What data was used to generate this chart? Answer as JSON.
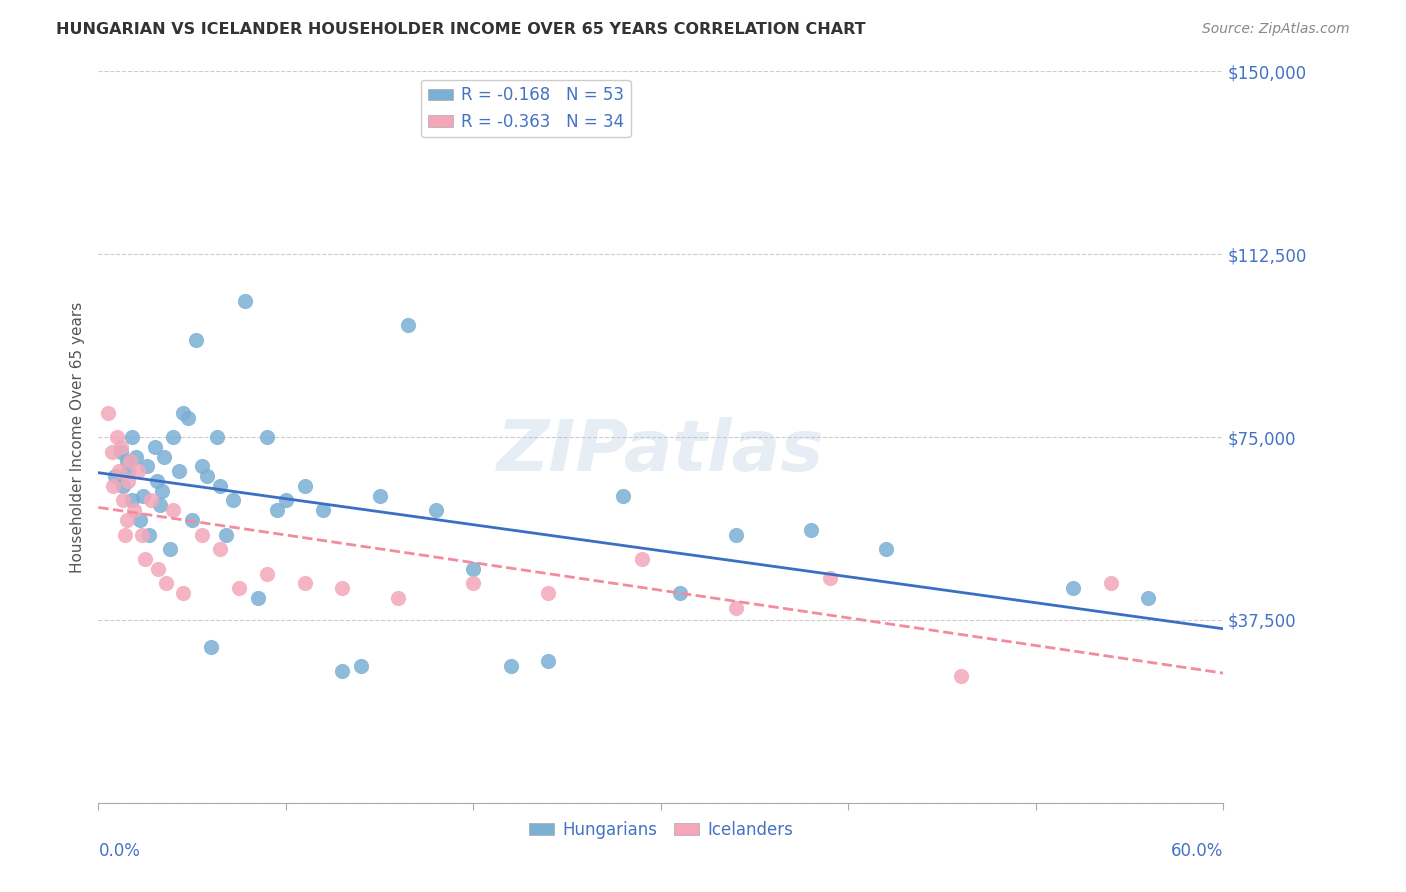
{
  "title": "HUNGARIAN VS ICELANDER HOUSEHOLDER INCOME OVER 65 YEARS CORRELATION CHART",
  "source": "Source: ZipAtlas.com",
  "ylabel": "Householder Income Over 65 years",
  "yticks": [
    0,
    37500,
    75000,
    112500,
    150000
  ],
  "ytick_labels": [
    "",
    "$37,500",
    "$75,000",
    "$112,500",
    "$150,000"
  ],
  "xlim": [
    0.0,
    0.6
  ],
  "ylim": [
    0,
    150000
  ],
  "hungarian_color": "#7bafd4",
  "icelander_color": "#f4a7b9",
  "trend_hungarian_color": "#3a6fc4",
  "trend_icelander_color": "#f48a9e",
  "hungarian_x": [
    0.009,
    0.012,
    0.013,
    0.015,
    0.016,
    0.018,
    0.018,
    0.02,
    0.022,
    0.024,
    0.026,
    0.027,
    0.03,
    0.031,
    0.033,
    0.034,
    0.035,
    0.038,
    0.04,
    0.043,
    0.045,
    0.048,
    0.05,
    0.052,
    0.055,
    0.058,
    0.06,
    0.063,
    0.065,
    0.068,
    0.072,
    0.078,
    0.085,
    0.09,
    0.095,
    0.1,
    0.11,
    0.12,
    0.13,
    0.14,
    0.15,
    0.165,
    0.18,
    0.2,
    0.22,
    0.24,
    0.28,
    0.31,
    0.34,
    0.38,
    0.42,
    0.52,
    0.56
  ],
  "hungarian_y": [
    67000,
    72000,
    65000,
    70000,
    68000,
    62000,
    75000,
    71000,
    58000,
    63000,
    69000,
    55000,
    73000,
    66000,
    61000,
    64000,
    71000,
    52000,
    75000,
    68000,
    80000,
    79000,
    58000,
    95000,
    69000,
    67000,
    32000,
    75000,
    65000,
    55000,
    62000,
    103000,
    42000,
    75000,
    60000,
    62000,
    65000,
    60000,
    27000,
    28000,
    63000,
    98000,
    60000,
    48000,
    28000,
    29000,
    63000,
    43000,
    55000,
    56000,
    52000,
    44000,
    42000
  ],
  "icelander_x": [
    0.005,
    0.007,
    0.008,
    0.01,
    0.011,
    0.012,
    0.013,
    0.014,
    0.015,
    0.016,
    0.017,
    0.019,
    0.021,
    0.023,
    0.025,
    0.028,
    0.032,
    0.036,
    0.04,
    0.045,
    0.055,
    0.065,
    0.075,
    0.09,
    0.11,
    0.13,
    0.16,
    0.2,
    0.24,
    0.29,
    0.34,
    0.39,
    0.46,
    0.54
  ],
  "icelander_y": [
    80000,
    72000,
    65000,
    75000,
    68000,
    73000,
    62000,
    55000,
    58000,
    66000,
    70000,
    60000,
    68000,
    55000,
    50000,
    62000,
    48000,
    45000,
    60000,
    43000,
    55000,
    52000,
    44000,
    47000,
    45000,
    44000,
    42000,
    45000,
    43000,
    50000,
    40000,
    46000,
    26000,
    45000
  ]
}
